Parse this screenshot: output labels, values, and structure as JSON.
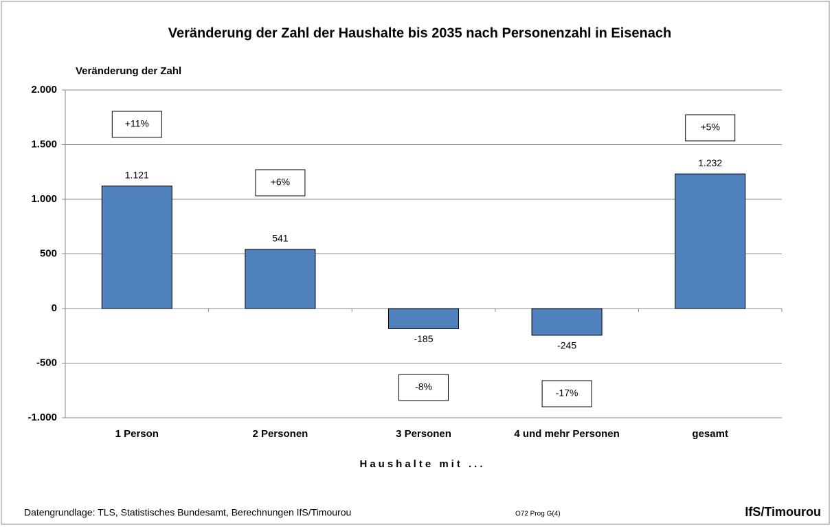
{
  "chart_data": {
    "type": "bar",
    "title": "Veränderung der Zahl der Haushalte bis 2035 nach Personenzahl  in Eisenach",
    "y_label": "Veränderung der Zahl",
    "x_label": "Haushalte mit ...",
    "categories": [
      "1 Person",
      "2 Personen",
      "3 Personen",
      "4 und mehr Personen",
      "gesamt"
    ],
    "values": [
      1121,
      541,
      -185,
      -245,
      1232
    ],
    "value_labels": [
      "1.121",
      "541",
      "-185",
      "-245",
      "1.232"
    ],
    "annotations": [
      "+11%",
      "+6%",
      "-8%",
      "-17%",
      "+5%"
    ],
    "color": "#4f81bd",
    "ylim": [
      -1000,
      2000
    ],
    "yticks": [
      {
        "value": -1000,
        "label": "-1.000"
      },
      -500,
      0,
      500,
      {
        "value": 1000,
        "label": "1.000"
      },
      {
        "value": 1500,
        "label": "1.500"
      },
      {
        "value": 2000,
        "label": "2.000"
      }
    ],
    "grid": true,
    "source": "Datengrundlage: TLS, Statistisches Bundesamt, Berechnungen IfS/Timourou",
    "code": "O72 Prog G(4)",
    "brand": "IfS/Timourou"
  }
}
